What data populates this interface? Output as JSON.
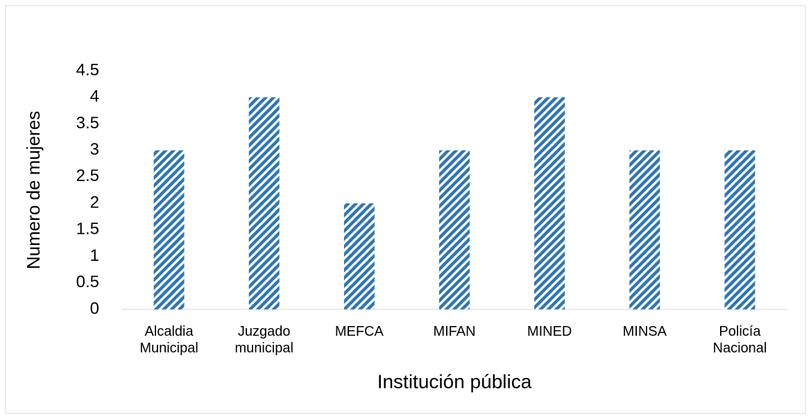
{
  "chart_data": {
    "type": "bar",
    "x_label": "Institución pública",
    "y_label": "Numero de mujeres",
    "categories": [
      "Alcaldia Municipal",
      "Juzgado municipal",
      "MEFCA",
      "MIFAN",
      "MINED",
      "MINSA",
      "Policía Nacional"
    ],
    "values": [
      3,
      4,
      2,
      3,
      4,
      3,
      3
    ],
    "color": "#2e75b6",
    "pattern": "diagonal-hatch",
    "ylim": [
      0,
      4.5
    ],
    "yticks": [
      0,
      0.5,
      1,
      1.5,
      2,
      2.5,
      3,
      3.5,
      4,
      4.5
    ],
    "grid": false
  }
}
